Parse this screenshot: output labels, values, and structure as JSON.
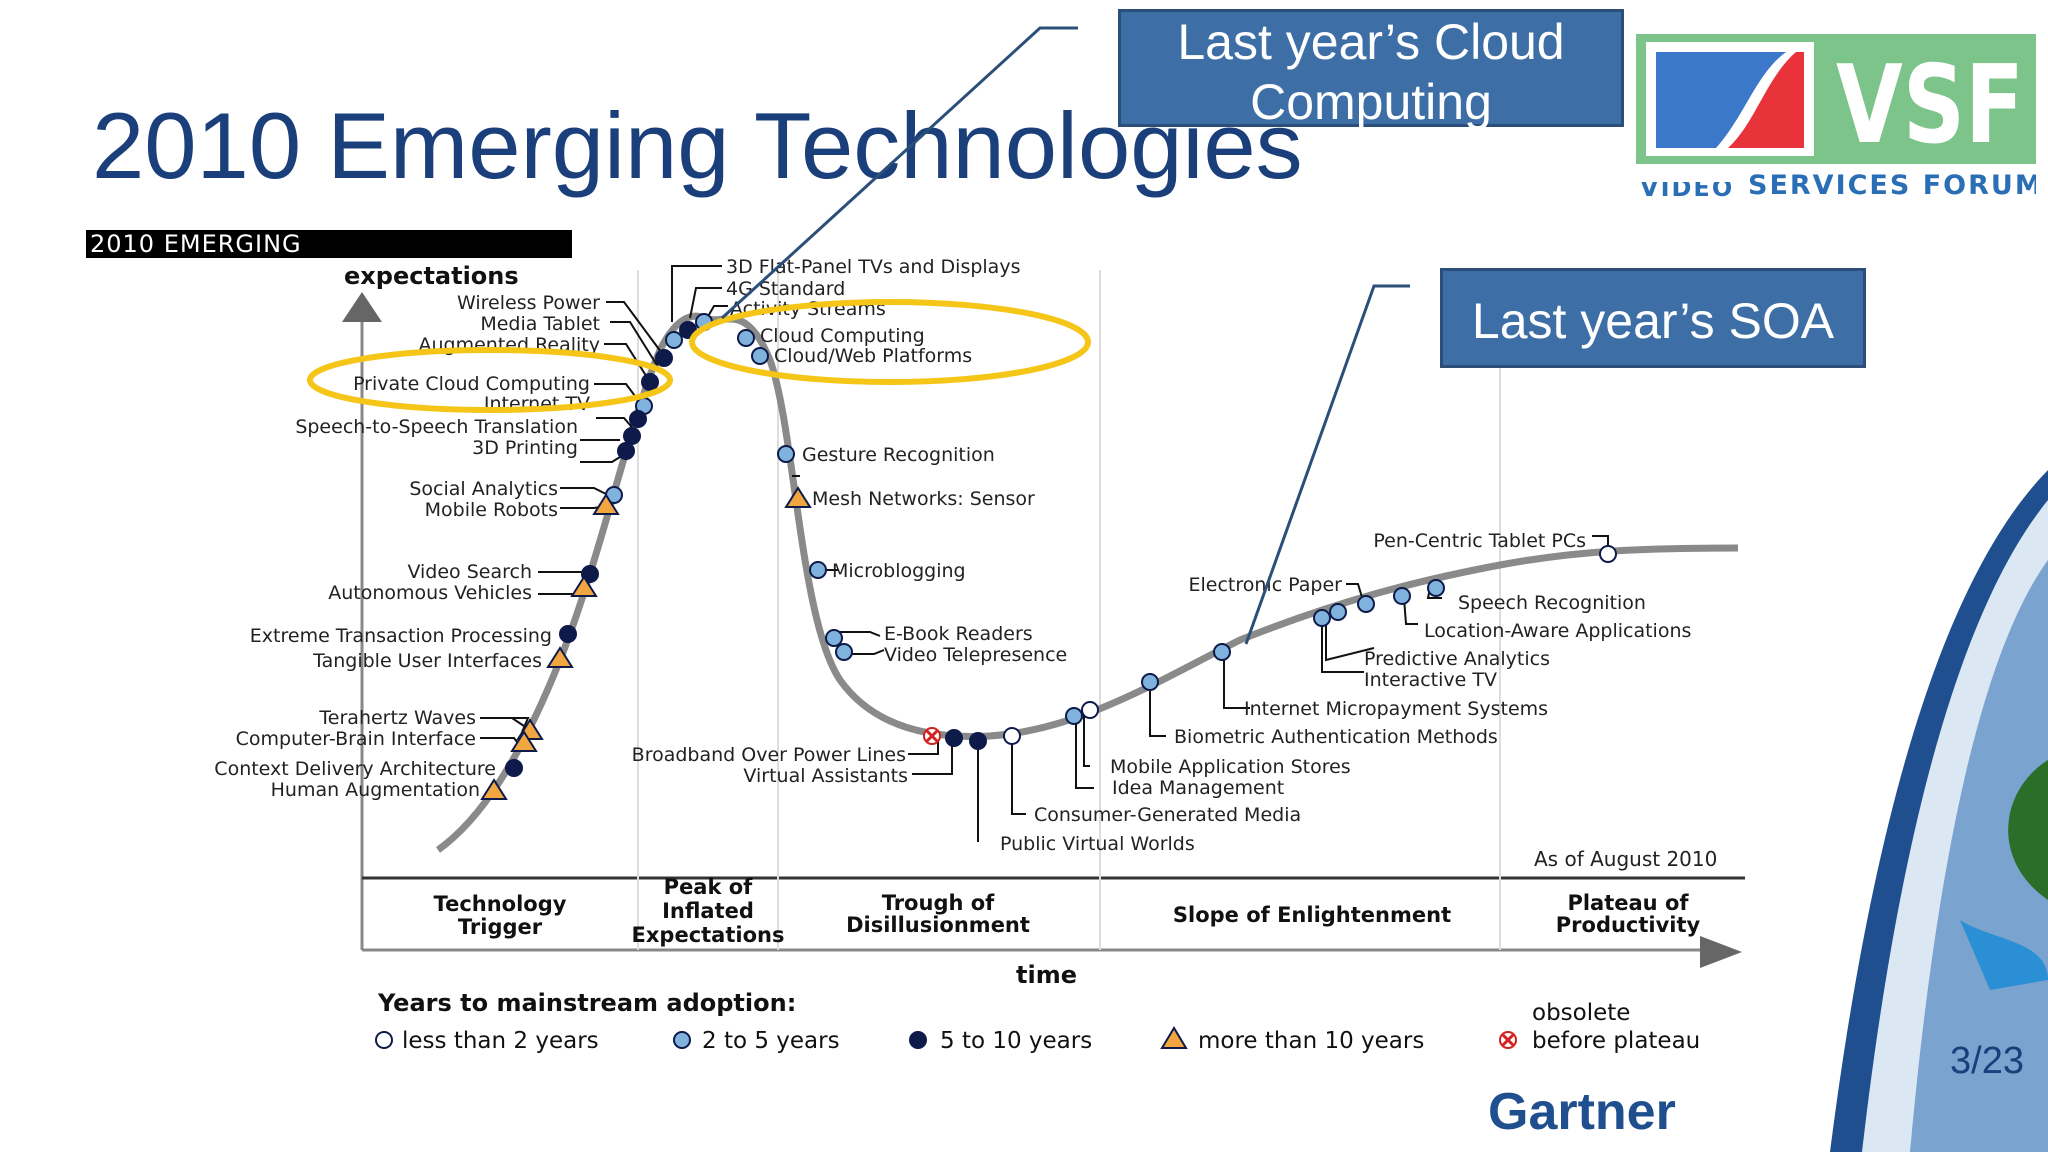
{
  "slide": {
    "title": "2010 Emerging Technologies",
    "callout_cloud": [
      "Last year’s Cloud",
      "Computing"
    ],
    "callout_soa": "Last year’s SOA",
    "slide_number": "3/23",
    "logo": {
      "brand": "VSF",
      "subtitle": "SERVICES FORUM",
      "partial_text": "VIDEO"
    },
    "source_logo": "Gartner"
  },
  "hype_cycle": {
    "header": "2010 EMERGING",
    "y_axis_label": "expectations",
    "x_axis_label": "time",
    "as_of": "As of August 2010",
    "phases": [
      [
        "Technology",
        "Trigger"
      ],
      [
        "Peak of",
        "Inflated",
        "Expectations"
      ],
      [
        "Trough of",
        "Disillusionment"
      ],
      [
        "Slope of Enlightenment"
      ],
      [
        "Plateau of",
        "Productivity"
      ]
    ],
    "legend_title": "Years to mainstream adoption:",
    "legend": [
      {
        "marker": "less-than-2",
        "label": "less than 2 years"
      },
      {
        "marker": "2-to-5",
        "label": "2 to 5 years"
      },
      {
        "marker": "5-to-10",
        "label": "5 to 10 years"
      },
      {
        "marker": "more-than-10",
        "label": "more than 10 years"
      },
      {
        "marker": "obsolete",
        "label_line1": "obsolete",
        "label_line2": "before plateau"
      }
    ],
    "colors": {
      "curve": "#8a8a8a",
      "light_blue": "#7fb2dc",
      "dark_navy": "#0d1a4a",
      "orange": "#f2a640",
      "red": "#d21f1f",
      "highlight_ring": "#f5c518",
      "callout": "#3d6fa6"
    },
    "technologies": [
      {
        "name": "3D Flat-Panel TVs and Displays",
        "marker": "5-to-10"
      },
      {
        "name": "4G Standard",
        "marker": "5-to-10"
      },
      {
        "name": "Activity Streams",
        "marker": "2-to-5"
      },
      {
        "name": "Wireless Power",
        "marker": "5-to-10"
      },
      {
        "name": "Media Tablet",
        "marker": "2-to-5"
      },
      {
        "name": "Augmented Reality",
        "marker": "5-to-10"
      },
      {
        "name": "Private Cloud Computing",
        "marker": "2-to-5",
        "highlighted": true
      },
      {
        "name": "Internet TV",
        "marker": "2-to-5"
      },
      {
        "name": "Speech-to-Speech Translation",
        "marker": "5-to-10"
      },
      {
        "name": "3D Printing",
        "marker": "5-to-10"
      },
      {
        "name": "Social Analytics",
        "marker": "2-to-5"
      },
      {
        "name": "Mobile Robots",
        "marker": "more-than-10"
      },
      {
        "name": "Video Search",
        "marker": "5-to-10"
      },
      {
        "name": "Autonomous Vehicles",
        "marker": "more-than-10"
      },
      {
        "name": "Extreme Transaction Processing",
        "marker": "5-to-10"
      },
      {
        "name": "Tangible User Interfaces",
        "marker": "more-than-10"
      },
      {
        "name": "Terahertz Waves",
        "marker": "more-than-10"
      },
      {
        "name": "Computer-Brain Interface",
        "marker": "more-than-10"
      },
      {
        "name": "Context Delivery Architecture",
        "marker": "5-to-10"
      },
      {
        "name": "Human Augmentation",
        "marker": "more-than-10"
      },
      {
        "name": "Cloud Computing",
        "marker": "2-to-5",
        "highlighted": true
      },
      {
        "name": "Cloud/Web Platforms",
        "marker": "2-to-5",
        "highlighted": true
      },
      {
        "name": "Gesture Recognition",
        "marker": "2-to-5"
      },
      {
        "name": "Mesh Networks: Sensor",
        "marker": "more-than-10"
      },
      {
        "name": "Microblogging",
        "marker": "2-to-5"
      },
      {
        "name": "E-Book Readers",
        "marker": "2-to-5"
      },
      {
        "name": "Video Telepresence",
        "marker": "2-to-5"
      },
      {
        "name": "Broadband Over Power Lines",
        "marker": "obsolete"
      },
      {
        "name": "Virtual Assistants",
        "marker": "5-to-10"
      },
      {
        "name": "Public Virtual Worlds",
        "marker": "5-to-10"
      },
      {
        "name": "Consumer-Generated Media",
        "marker": "less-than-2"
      },
      {
        "name": "Mobile Application Stores",
        "marker": "2-to-5"
      },
      {
        "name": "Idea Management",
        "marker": "less-than-2"
      },
      {
        "name": "Biometric Authentication Methods",
        "marker": "2-to-5"
      },
      {
        "name": "Internet Micropayment Systems",
        "marker": "2-to-5"
      },
      {
        "name": "Electronic Paper",
        "marker": "2-to-5"
      },
      {
        "name": "Predictive Analytics",
        "marker": "2-to-5"
      },
      {
        "name": "Interactive TV",
        "marker": "2-to-5"
      },
      {
        "name": "Location-Aware Applications",
        "marker": "2-to-5"
      },
      {
        "name": "Speech Recognition",
        "marker": "2-to-5"
      },
      {
        "name": "Pen-Centric Tablet PCs",
        "marker": "less-than-2"
      }
    ]
  }
}
